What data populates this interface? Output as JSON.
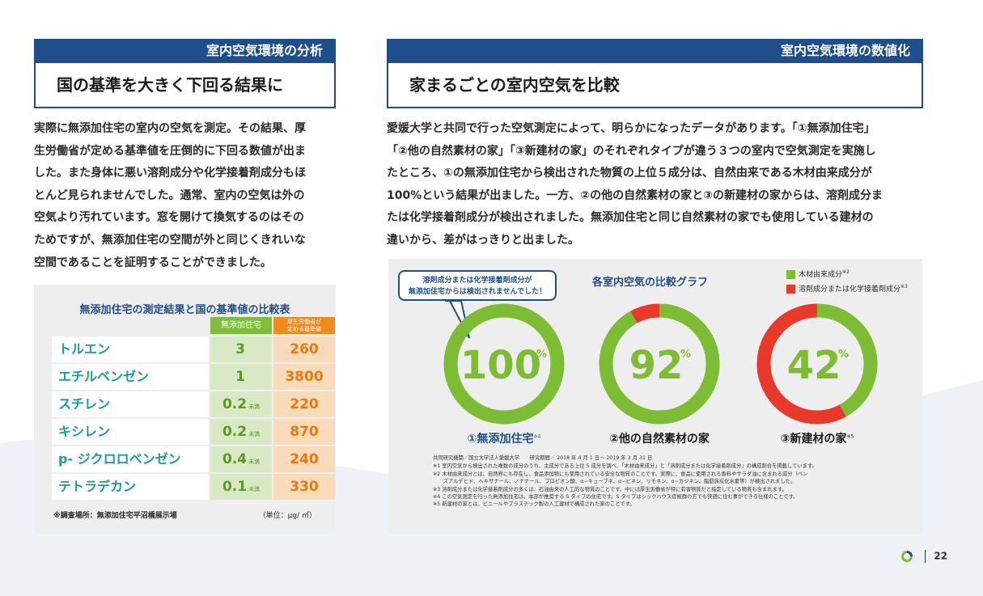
{
  "left": {
    "header_bar": "室内空気環境の分析",
    "header_title": "国の基準を大きく下回る結果に",
    "body": [
      "実際に無添加住宅の室内の空気を測定。その結果、厚",
      "生労働省が定める基準値を圧倒的に下回る数値が出ま",
      "した。また身体に悪い溶剤成分や化学接着剤成分もほ",
      "とんど見られませんでした。通常、室内の空気は外の",
      "空気より汚れています。窓を開けて換気するのはその",
      "ためですが、無添加住宅の空間が外と同じくきれいな",
      "空間であることを証明することができました。"
    ],
    "table": {
      "title": "無添加住宅の測定結果と国の基準値の比較表",
      "col_a": "無添加住宅",
      "col_b": [
        "厚生労働省が",
        "定める基準値"
      ],
      "rows": [
        {
          "name": "トルエン",
          "a": "3",
          "a_unit": "",
          "b": "260"
        },
        {
          "name": "エチルベンゼン",
          "a": "1",
          "a_unit": "",
          "b": "3800"
        },
        {
          "name": "スチレン",
          "a": "0.2",
          "a_unit": "未満",
          "b": "220"
        },
        {
          "name": "キシレン",
          "a": "0.2",
          "a_unit": "未満",
          "b": "870"
        },
        {
          "name": "p- ジクロロベンゼン",
          "a": "0.4",
          "a_unit": "未満",
          "b": "240"
        },
        {
          "name": "テトラデカン",
          "a": "0.1",
          "a_unit": "未満",
          "b": "330"
        }
      ],
      "footnote": "※調査場所：無添加住宅平沼橋展示場",
      "unit_note": "（単位：μg/ ㎥）"
    }
  },
  "right": {
    "header_bar": "室内空気環境の数値化",
    "header_title": "家まるごとの室内空気を比較",
    "body": [
      "愛媛大学と共同で行った空気測定によって、明らかになったデータがあります。「①無添加住宅」",
      "「②他の自然素材の家」「③新建材の家」のそれぞれタイプが違う３つの室内で空気測定を実施し",
      "たところ、①の無添加住宅から検出された物質の上位５成分は、自然由来である木材由来成分が",
      "100%という結果が出ました。一方、②の他の自然素材の家と③の新建材の家からは、溶剤成分ま",
      "たは化学接着剤成分が検出されました。無添加住宅と同じ自然素材の家でも使用している建材の",
      "違いから、差がはっきりと出ました。"
    ]
  },
  "chart_data": {
    "type": "pie",
    "title": "各室内空気の比較グラフ",
    "callout": [
      "溶剤成分または化学接着剤成分が",
      "無添加住宅からは検出されませんでした！"
    ],
    "legend": [
      {
        "label": "木材由来成分",
        "note": "※2",
        "color": "#7dbd33"
      },
      {
        "label": "溶剤成分または化学接着剤成分",
        "note": "※3",
        "color": "#e8392b"
      }
    ],
    "charts": [
      {
        "label": "①無添加住宅",
        "note": "※4",
        "wood": 100,
        "solvent": 0,
        "center_value": "100",
        "center_unit": "%",
        "center_color": "#7dbd33"
      },
      {
        "label": "②他の自然素材の家",
        "note": "",
        "wood": 92,
        "solvent": 8,
        "center_value": "92",
        "center_unit": "%",
        "center_color": "#7dbd33"
      },
      {
        "label": "③新建材の家",
        "note": "※5",
        "wood": 42,
        "solvent": 58,
        "center_value": "42",
        "center_unit": "%",
        "center_color": "#7dbd33"
      }
    ],
    "notes": [
      "共同研究機関／国立大学法人愛媛大学　　研究期間／ 2018 年 4 月 1 日～ 2019 年 3 月 31 日",
      "※1 室内空気から検出された複数の成分のうち、主成分である上位 5 成分を調べ、「木材由来成分」と「溶剤成分または化学接着剤成分」の構成割合を掲載しています。",
      "※2 木材由来成分とは、自然界にも存在し、食品添加物にも使用されている安全な物質のことです。実際に、食品に使用される香料やサラダ油に含まれる成分（ベン",
      "　　ズアルデヒド、ヘキサナール、ノナナール、プロピオン酸、α−キューブネ、α−ピネン、リモネン、α−カジネン、脂肪族炭化水素等）が検出されました。",
      "※3 溶剤成分または化学接着剤成分の多くは、石油由来の人工的な物質のことです。中には厚生労働省が特に有害物質だと指定している物質も含まれます。",
      "※4 この空気測定を行った無添加住宅は、本部が推奨する S タイプの住宅です。S タイプはシックハウス症候群の方でも快適に住む事ができる仕様のことです。",
      "※5 新建材の家とは、ビニールやプラスチック製の人工建材で構成された家のことです。"
    ]
  },
  "page_number": "22"
}
